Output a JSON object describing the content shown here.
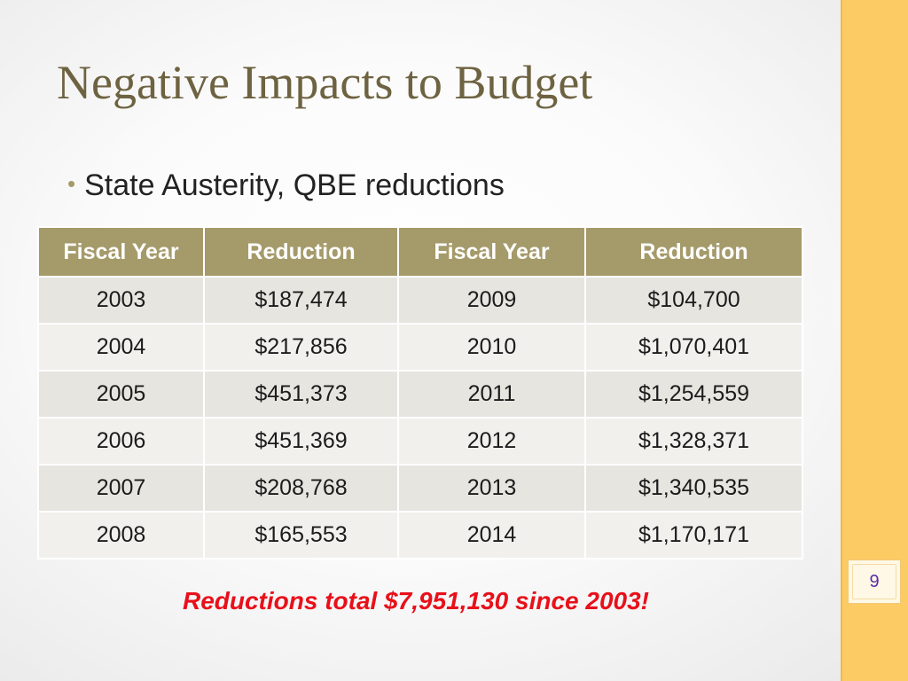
{
  "slide": {
    "title": "Negative Impacts to Budget",
    "bullet": "State Austerity, QBE reductions",
    "page_number": "9",
    "total_note": "Reductions total $7,951,130 since 2003!"
  },
  "table": {
    "headers": [
      "Fiscal Year",
      "Reduction",
      "Fiscal Year",
      "Reduction"
    ],
    "rows": [
      [
        "2003",
        "$187,474",
        "2009",
        "$104,700"
      ],
      [
        "2004",
        "$217,856",
        "2010",
        "$1,070,401"
      ],
      [
        "2005",
        "$451,373",
        "2011",
        "$1,254,559"
      ],
      [
        "2006",
        "$451,369",
        "2012",
        "$1,328,371"
      ],
      [
        "2007",
        "$208,768",
        "2013",
        "$1,340,535"
      ],
      [
        "2008",
        "$165,553",
        "2014",
        "$1,170,171"
      ]
    ]
  },
  "colors": {
    "accent_band": "#fdcb63",
    "header_fill": "#a59a6a",
    "title_color": "#6e6341",
    "total_color": "#e8101a"
  }
}
